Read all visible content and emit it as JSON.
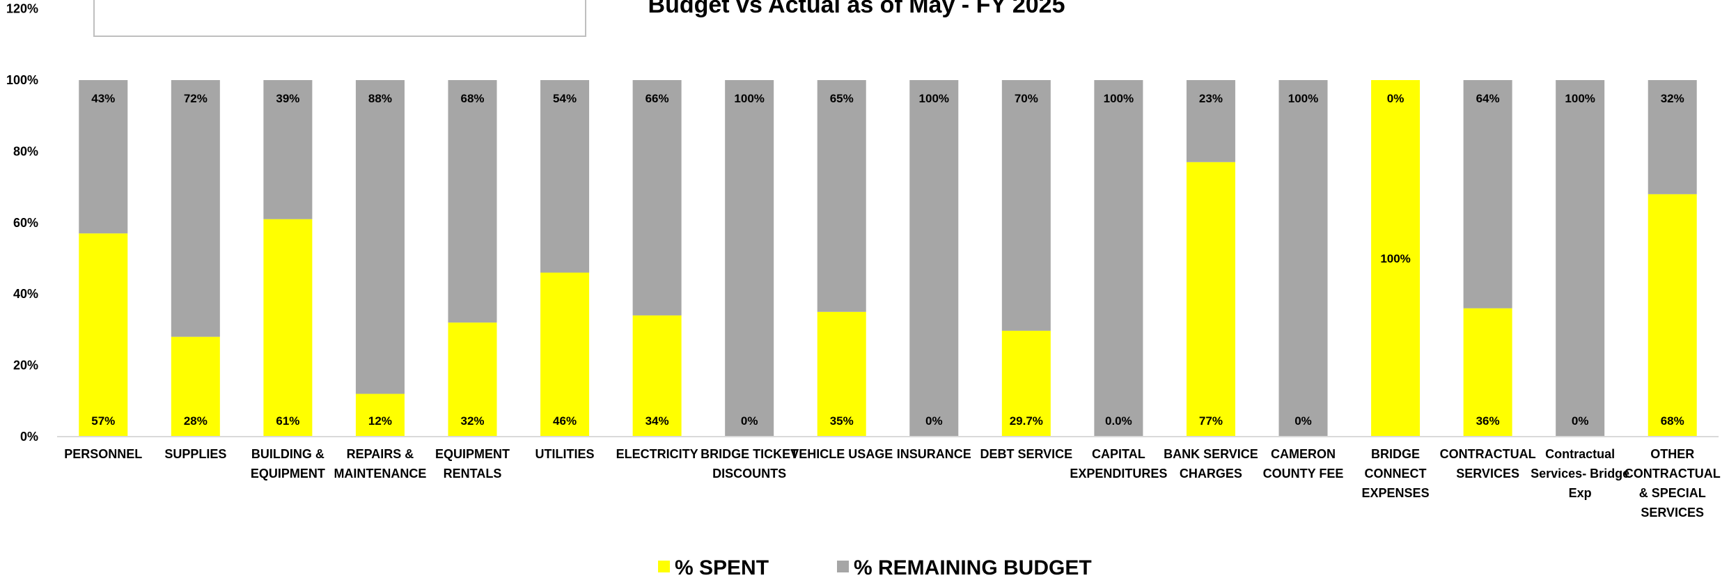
{
  "chart_data": {
    "type": "bar",
    "stacked": true,
    "title": "Budget vs Actual as of May - FY 2025",
    "ylim": [
      0,
      120
    ],
    "yticks": [
      "0%",
      "20%",
      "40%",
      "60%",
      "80%",
      "100%",
      "120%"
    ],
    "grid": false,
    "legend_position": "bottom",
    "categories": [
      "PERSONNEL",
      "SUPPLIES",
      "BUILDING & EQUIPMENT",
      "REPAIRS & MAINTENANCE",
      "EQUIPMENT RENTALS",
      "UTILITIES",
      "ELECTRICITY",
      "BRIDGE TICKET DISCOUNTS",
      "VEHICLE USAGE",
      "INSURANCE",
      "DEBT SERVICE",
      "CAPITAL EXPENDITURES",
      "BANK SERVICE CHARGES",
      "CAMERON COUNTY FEE",
      "BRIDGE CONNECT EXPENSES",
      "CONTRACTUAL SERVICES",
      "Contractual Services- Bridge Exp",
      "OTHER CONTRACTUAL & SPECIAL SERVICES"
    ],
    "category_lines": [
      [
        "PERSONNEL"
      ],
      [
        "SUPPLIES"
      ],
      [
        "BUILDING &",
        "EQUIPMENT"
      ],
      [
        "REPAIRS &",
        "MAINTENANCE"
      ],
      [
        "EQUIPMENT",
        "RENTALS"
      ],
      [
        "UTILITIES"
      ],
      [
        "ELECTRICITY"
      ],
      [
        "BRIDGE TICKET",
        "DISCOUNTS"
      ],
      [
        "VEHICLE USAGE"
      ],
      [
        "INSURANCE"
      ],
      [
        "DEBT SERVICE"
      ],
      [
        "CAPITAL",
        "EXPENDITURES"
      ],
      [
        "BANK SERVICE",
        "CHARGES"
      ],
      [
        "CAMERON",
        "COUNTY FEE"
      ],
      [
        "BRIDGE",
        "CONNECT",
        "EXPENSES"
      ],
      [
        "CONTRACTUAL",
        "SERVICES"
      ],
      [
        "Contractual",
        "Services- Bridge",
        "Exp"
      ],
      [
        "OTHER",
        "CONTRACTUAL",
        "& SPECIAL",
        "SERVICES"
      ]
    ],
    "series": [
      {
        "name": "% SPENT",
        "color": "#FFFF00",
        "values": [
          57,
          28,
          61,
          12,
          32,
          46,
          34,
          0,
          35,
          0,
          29.7,
          0,
          77,
          0,
          100,
          36,
          0,
          68
        ],
        "labels": [
          "57%",
          "28%",
          "61%",
          "12%",
          "32%",
          "46%",
          "34%",
          "0%",
          "35%",
          "0%",
          "29.7%",
          "0.0%",
          "77%",
          "0%",
          "100%",
          "36%",
          "0%",
          "68%"
        ]
      },
      {
        "name": "% REMAINING BUDGET",
        "color": "#A6A6A6",
        "values": [
          43,
          72,
          39,
          88,
          68,
          54,
          66,
          100,
          65,
          100,
          70.3,
          100,
          23,
          100,
          0,
          64,
          100,
          32
        ],
        "labels": [
          "43%",
          "72%",
          "39%",
          "88%",
          "68%",
          "54%",
          "66%",
          "100%",
          "65%",
          "100%",
          "70%",
          "100%",
          "23%",
          "100%",
          "0%",
          "64%",
          "100%",
          "32%"
        ]
      }
    ]
  }
}
